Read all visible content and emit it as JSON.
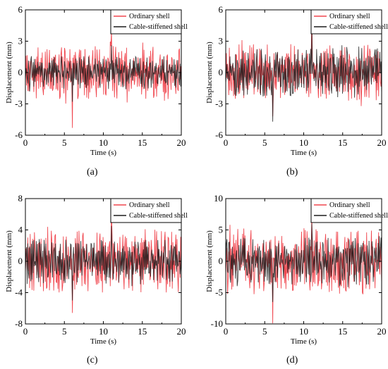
{
  "legend_labels": {
    "ordinary": "Ordinary shell",
    "cable": "Cable-stiffened shell"
  },
  "colors": {
    "ordinary": "#f0474f",
    "cable": "#1b1b1b",
    "axis": "#000000"
  },
  "panel_labels": [
    "(a)",
    "(b)",
    "(c)",
    "(d)"
  ],
  "chart_data": [
    {
      "type": "line",
      "panel": "(a)",
      "xlabel": "Time (s)",
      "ylabel": "Displacement (mm)",
      "xlim": [
        0,
        20
      ],
      "ylim": [
        -6,
        6
      ],
      "xticks": [
        0,
        5,
        10,
        15,
        20
      ],
      "yticks": [
        -6,
        -3,
        0,
        3,
        6
      ],
      "legend_position": "top-right",
      "grid": false,
      "series": [
        {
          "name": "Ordinary shell",
          "points": 260,
          "amplitude_rms": 1.6,
          "max": 4.0,
          "min": -5.3
        },
        {
          "name": "Cable-stiffened shell",
          "points": 260,
          "amplitude_rms": 1.0,
          "max": 2.6,
          "min": -2.8
        }
      ]
    },
    {
      "type": "line",
      "panel": "(b)",
      "xlabel": "Time (s)",
      "ylabel": "Displacement (mm)",
      "xlim": [
        0,
        20
      ],
      "ylim": [
        -6,
        6
      ],
      "xticks": [
        0,
        5,
        10,
        15,
        20
      ],
      "yticks": [
        -6,
        -3,
        0,
        3,
        6
      ],
      "legend_position": "top-right",
      "grid": false,
      "series": [
        {
          "name": "Ordinary shell",
          "points": 260,
          "amplitude_rms": 1.7,
          "max": 5.3,
          "min": -4.2
        },
        {
          "name": "Cable-stiffened shell",
          "points": 260,
          "amplitude_rms": 1.5,
          "max": 4.3,
          "min": -4.7
        }
      ]
    },
    {
      "type": "line",
      "panel": "(c)",
      "xlabel": "Time (s)",
      "ylabel": "Displacement (mm)",
      "xlim": [
        0,
        20
      ],
      "ylim": [
        -8,
        8
      ],
      "xticks": [
        0,
        5,
        10,
        15,
        20
      ],
      "yticks": [
        -8,
        -4,
        0,
        4,
        8
      ],
      "legend_position": "top-right",
      "grid": false,
      "series": [
        {
          "name": "Ordinary shell",
          "points": 260,
          "amplitude_rms": 2.5,
          "max": 6.3,
          "min": -6.6
        },
        {
          "name": "Cable-stiffened shell",
          "points": 260,
          "amplitude_rms": 1.8,
          "max": 4.5,
          "min": -5.0
        }
      ]
    },
    {
      "type": "line",
      "panel": "(d)",
      "xlabel": "Time (s)",
      "ylabel": "Displacement (mm)",
      "xlim": [
        0,
        20
      ],
      "ylim": [
        -10,
        10
      ],
      "xticks": [
        0,
        5,
        10,
        15,
        20
      ],
      "yticks": [
        -10,
        -5,
        0,
        5,
        10
      ],
      "legend_position": "top-right",
      "grid": false,
      "series": [
        {
          "name": "Ordinary shell",
          "points": 260,
          "amplitude_rms": 3.3,
          "max": 7.9,
          "min": -9.9
        },
        {
          "name": "Cable-stiffened shell",
          "points": 260,
          "amplitude_rms": 2.4,
          "max": 6.0,
          "min": -6.5
        }
      ]
    }
  ]
}
